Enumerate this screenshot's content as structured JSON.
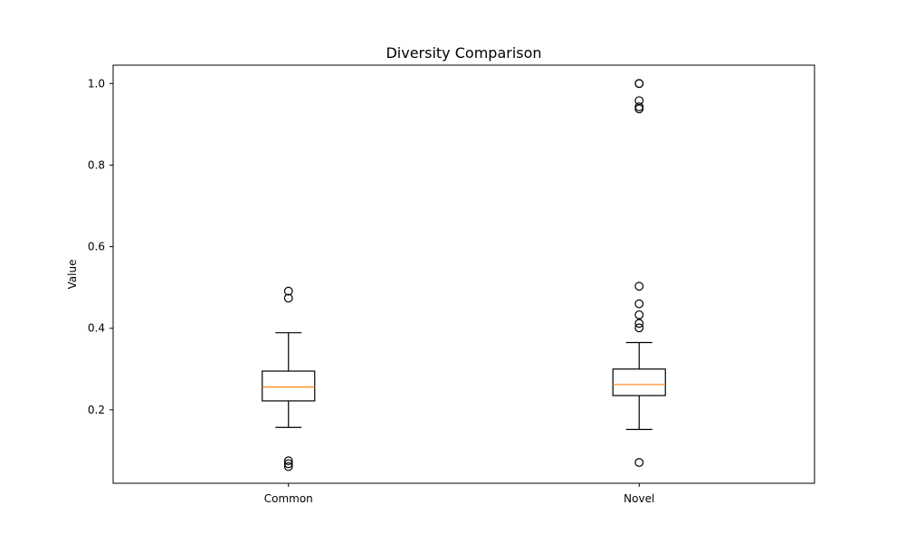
{
  "chart_data": {
    "type": "box",
    "title": "Diversity Comparison",
    "xlabel": "",
    "ylabel": "Value",
    "ylim": [
      0.02,
      1.045
    ],
    "yticks": [
      0.2,
      0.4,
      0.6,
      0.8,
      1.0
    ],
    "ytick_labels": [
      "0.2",
      "0.4",
      "0.6",
      "0.8",
      "1.0"
    ],
    "categories": [
      "Common",
      "Novel"
    ],
    "grid": false,
    "colors": {
      "box": "#000000",
      "median": "#ff7f0e",
      "background": "#ffffff"
    },
    "boxes": [
      {
        "label": "Common",
        "whisker_low": 0.157,
        "q1": 0.222,
        "median": 0.256,
        "q3": 0.295,
        "whisker_high": 0.389,
        "outliers": [
          0.061,
          0.068,
          0.075,
          0.474,
          0.491
        ]
      },
      {
        "label": "Novel",
        "whisker_low": 0.152,
        "q1": 0.235,
        "median": 0.262,
        "q3": 0.3,
        "whisker_high": 0.365,
        "outliers": [
          0.071,
          0.401,
          0.412,
          0.433,
          0.46,
          0.503,
          0.938,
          0.943,
          0.958,
          1.0,
          1.0
        ]
      }
    ]
  }
}
